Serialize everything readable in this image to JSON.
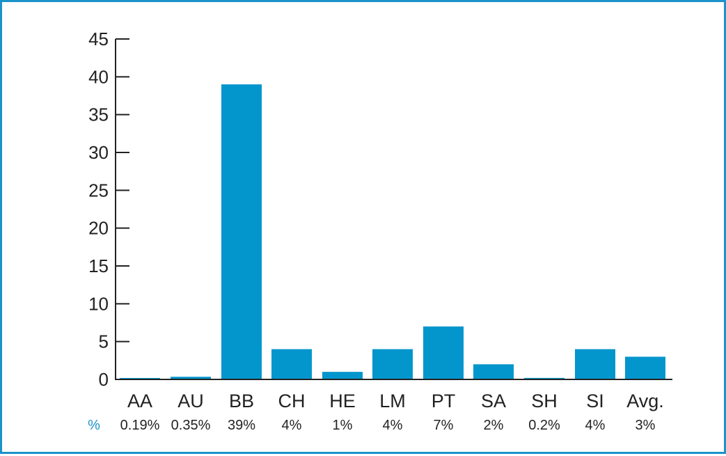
{
  "chart_data": {
    "type": "bar",
    "categories": [
      "AA",
      "AU",
      "BB",
      "CH",
      "HE",
      "LM",
      "PT",
      "SA",
      "SH",
      "SI",
      "Avg."
    ],
    "values": [
      0.19,
      0.35,
      39,
      4,
      1,
      4,
      7,
      2,
      0.2,
      4,
      3
    ],
    "value_labels": [
      "0.19%",
      "0.35%",
      "39%",
      "4%",
      "1%",
      "4%",
      "7%",
      "2%",
      "0.2%",
      "4%",
      "3%"
    ],
    "value_label_key": "%",
    "yticks": [
      0,
      5,
      10,
      15,
      20,
      25,
      30,
      35,
      40,
      45
    ],
    "ylim": [
      0,
      45
    ],
    "title": "",
    "xlabel": "",
    "ylabel": "",
    "grid": false,
    "legend": "none",
    "colors": {
      "bar": "#0396cc",
      "frame": "#1b93c9",
      "axis": "#222222",
      "key": "#1b93c9"
    }
  }
}
